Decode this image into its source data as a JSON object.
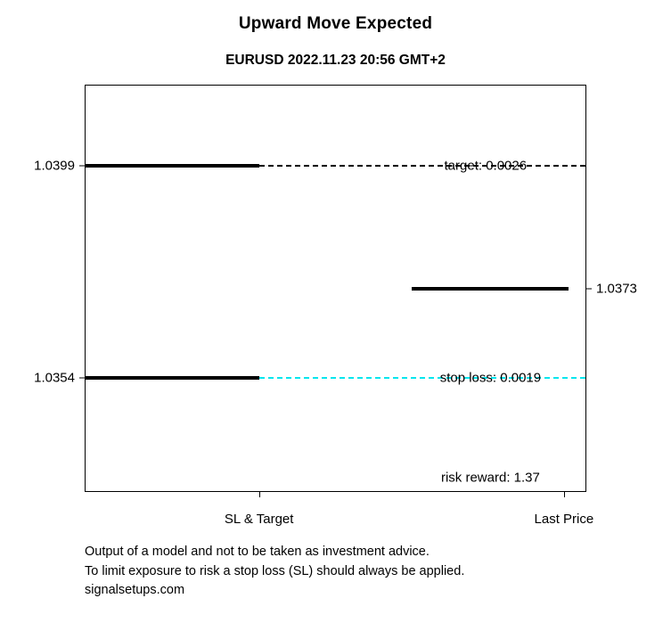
{
  "chart_data": {
    "type": "line",
    "title": "Upward Move Expected",
    "subtitle": "EURUSD 2022.11.23 20:56 GMT+2",
    "x_categories": [
      "SL & Target",
      "Last Price"
    ],
    "ylim": [
      1.033,
      1.0416
    ],
    "grid": false,
    "legend": false,
    "levels": {
      "target": {
        "price": 1.0399,
        "label": "1.0399",
        "annotation": "target: 0.0026",
        "distance": 0.0026,
        "solid_color": "#000000",
        "dash_color": "#000000"
      },
      "stop_loss": {
        "price": 1.0354,
        "label": "1.0354",
        "annotation": "stop loss: 0.0019",
        "distance": 0.0019,
        "solid_color": "#000000",
        "dash_color": "#00e6ee"
      },
      "last_price": {
        "price": 1.0373,
        "label": "1.0373",
        "solid_color": "#000000"
      }
    },
    "risk_reward": 1.37,
    "risk_reward_label": "risk reward: 1.37"
  },
  "footer": {
    "line1": "Output of a model and not to be taken as investment advice.",
    "line2": "To limit exposure to risk a stop loss (SL) should always be applied.",
    "line3": "signalsetups.com"
  }
}
